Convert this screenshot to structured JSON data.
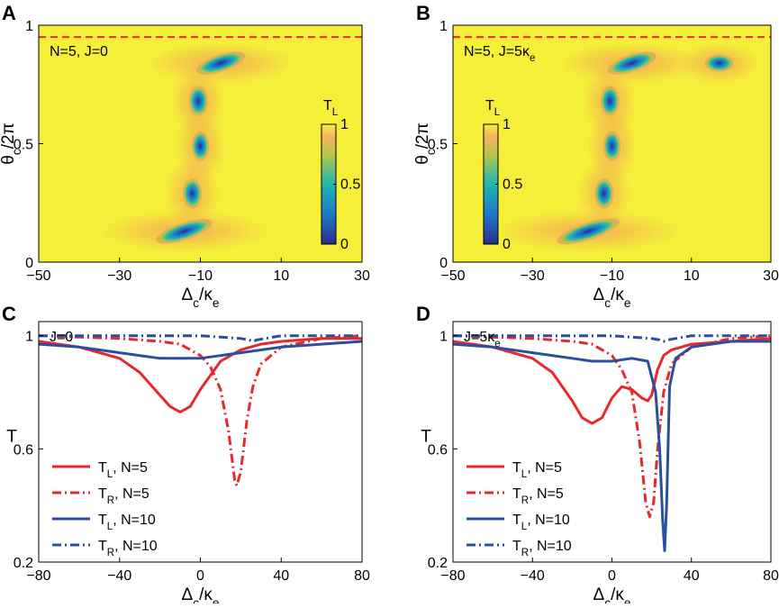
{
  "chart_data": [
    {
      "panel": "A",
      "type": "heatmap",
      "annotation": "N=5, J=0",
      "xlabel": "Δc/κe",
      "ylabel": "θc/2π",
      "xlim": [
        -50,
        30
      ],
      "ylim": [
        0,
        1
      ],
      "xticks": [
        "-50",
        "-30",
        "-10",
        "10",
        "30"
      ],
      "yticks": [
        "0",
        "0.5",
        "1"
      ],
      "reference_line_y": 0.95,
      "colorbar": {
        "label": "TL",
        "ticks": [
          "0",
          "0.5",
          "1"
        ],
        "range": [
          0,
          1
        ]
      },
      "dips": [
        {
          "x": -14,
          "y": 0.13,
          "width": 8,
          "height": 0.04
        },
        {
          "x": -12,
          "y": 0.29,
          "width": 2.6,
          "height": 0.07
        },
        {
          "x": -10,
          "y": 0.49,
          "width": 2.4,
          "height": 0.07
        },
        {
          "x": -10.5,
          "y": 0.68,
          "width": 2.6,
          "height": 0.07
        },
        {
          "x": -5,
          "y": 0.84,
          "width": 7,
          "height": 0.04
        }
      ]
    },
    {
      "panel": "B",
      "type": "heatmap",
      "annotation": "N=5, J=5κe",
      "xlabel": "Δc/κe",
      "ylabel": "θc/2π",
      "xlim": [
        -50,
        30
      ],
      "ylim": [
        0,
        1
      ],
      "xticks": [
        "-50",
        "-30",
        "-10",
        "10",
        "30"
      ],
      "yticks": [
        "0",
        "0.5",
        "1"
      ],
      "reference_line_y": 0.95,
      "colorbar": {
        "label": "TL",
        "ticks": [
          "0",
          "0.5",
          "1"
        ],
        "range": [
          0,
          1
        ]
      },
      "dips": [
        {
          "x": -16,
          "y": 0.13,
          "width": 9,
          "height": 0.04
        },
        {
          "x": -12,
          "y": 0.29,
          "width": 2.6,
          "height": 0.07
        },
        {
          "x": -10,
          "y": 0.49,
          "width": 2.4,
          "height": 0.07
        },
        {
          "x": -10.5,
          "y": 0.68,
          "width": 2.6,
          "height": 0.07
        },
        {
          "x": -5,
          "y": 0.84,
          "width": 7,
          "height": 0.04
        },
        {
          "x": 17,
          "y": 0.84,
          "width": 4,
          "height": 0.04
        }
      ]
    },
    {
      "panel": "C",
      "type": "line",
      "annotation": "J=0",
      "xlabel": "Δc/κe",
      "ylabel": "T",
      "xlim": [
        -80,
        80
      ],
      "ylim": [
        0.2,
        1.05
      ],
      "xticks": [
        -80,
        -40,
        0,
        40,
        80
      ],
      "yticks": [
        0.2,
        0.6,
        1
      ],
      "series": [
        {
          "name": "TL, N=5",
          "color": "#e8282d",
          "style": "solid",
          "x": [
            -80,
            -60,
            -40,
            -30,
            -20,
            -15,
            -10,
            -5,
            0,
            10,
            20,
            30,
            40,
            60,
            80
          ],
          "y": [
            0.98,
            0.96,
            0.92,
            0.87,
            0.79,
            0.75,
            0.73,
            0.75,
            0.81,
            0.91,
            0.95,
            0.97,
            0.98,
            0.99,
            0.99
          ]
        },
        {
          "name": "TR, N=5",
          "color": "#e8282d",
          "style": "dashdot",
          "x": [
            -80,
            -40,
            -20,
            -10,
            0,
            5,
            10,
            14,
            17,
            18,
            20,
            23,
            26,
            30,
            40,
            60,
            80
          ],
          "y": [
            1.0,
            0.99,
            0.98,
            0.97,
            0.93,
            0.89,
            0.81,
            0.66,
            0.49,
            0.47,
            0.52,
            0.7,
            0.82,
            0.9,
            0.96,
            0.99,
            1.0
          ]
        },
        {
          "name": "TL, N=10",
          "color": "#2b4fa0",
          "style": "solid",
          "x": [
            -80,
            -60,
            -40,
            -20,
            -10,
            0,
            10,
            20,
            40,
            60,
            80
          ],
          "y": [
            0.97,
            0.96,
            0.94,
            0.92,
            0.92,
            0.92,
            0.93,
            0.94,
            0.96,
            0.97,
            0.98
          ]
        },
        {
          "name": "TR, N=10",
          "color": "#2b4fa0",
          "style": "dashdot",
          "x": [
            -80,
            0,
            20,
            24,
            26,
            28,
            32,
            40,
            80
          ],
          "y": [
            1.0,
            1.0,
            0.99,
            0.985,
            0.98,
            0.985,
            0.99,
            1.0,
            1.0
          ]
        }
      ]
    },
    {
      "panel": "D",
      "type": "line",
      "annotation": "J=5κe",
      "xlabel": "Δc/κe",
      "ylabel": "T",
      "xlim": [
        -80,
        80
      ],
      "ylim": [
        0.2,
        1.05
      ],
      "xticks": [
        -80,
        -40,
        0,
        40,
        80
      ],
      "yticks": [
        0.2,
        0.6,
        1
      ],
      "series": [
        {
          "name": "TL, N=5",
          "color": "#e8282d",
          "style": "solid",
          "x": [
            -80,
            -60,
            -40,
            -30,
            -20,
            -15,
            -10,
            -5,
            0,
            5,
            10,
            15,
            18,
            20,
            23,
            26,
            30,
            40,
            60,
            80
          ],
          "y": [
            0.98,
            0.96,
            0.92,
            0.87,
            0.77,
            0.71,
            0.69,
            0.71,
            0.78,
            0.82,
            0.81,
            0.78,
            0.77,
            0.79,
            0.88,
            0.93,
            0.95,
            0.97,
            0.98,
            0.99
          ]
        },
        {
          "name": "TR, N=5",
          "color": "#e8282d",
          "style": "dashdot",
          "x": [
            -80,
            -40,
            -20,
            -10,
            0,
            5,
            10,
            14,
            17,
            19,
            21,
            23,
            26,
            30,
            40,
            60,
            80
          ],
          "y": [
            1.0,
            0.99,
            0.98,
            0.97,
            0.93,
            0.88,
            0.8,
            0.62,
            0.41,
            0.36,
            0.41,
            0.6,
            0.8,
            0.9,
            0.96,
            0.99,
            1.0
          ]
        },
        {
          "name": "TL, N=10",
          "color": "#2b4fa0",
          "style": "solid",
          "x": [
            -80,
            -60,
            -40,
            -20,
            -10,
            0,
            10,
            18,
            22,
            24,
            25.5,
            26.5,
            27.5,
            29,
            32,
            40,
            60,
            80
          ],
          "y": [
            0.97,
            0.96,
            0.94,
            0.92,
            0.91,
            0.91,
            0.92,
            0.91,
            0.8,
            0.6,
            0.35,
            0.24,
            0.4,
            0.82,
            0.92,
            0.96,
            0.98,
            0.98
          ]
        },
        {
          "name": "TR, N=10",
          "color": "#2b4fa0",
          "style": "dashdot",
          "x": [
            -80,
            0,
            20,
            24,
            26,
            28,
            32,
            40,
            80
          ],
          "y": [
            1.0,
            1.0,
            0.99,
            0.985,
            0.98,
            0.985,
            0.99,
            1.0,
            1.0
          ]
        }
      ]
    }
  ]
}
